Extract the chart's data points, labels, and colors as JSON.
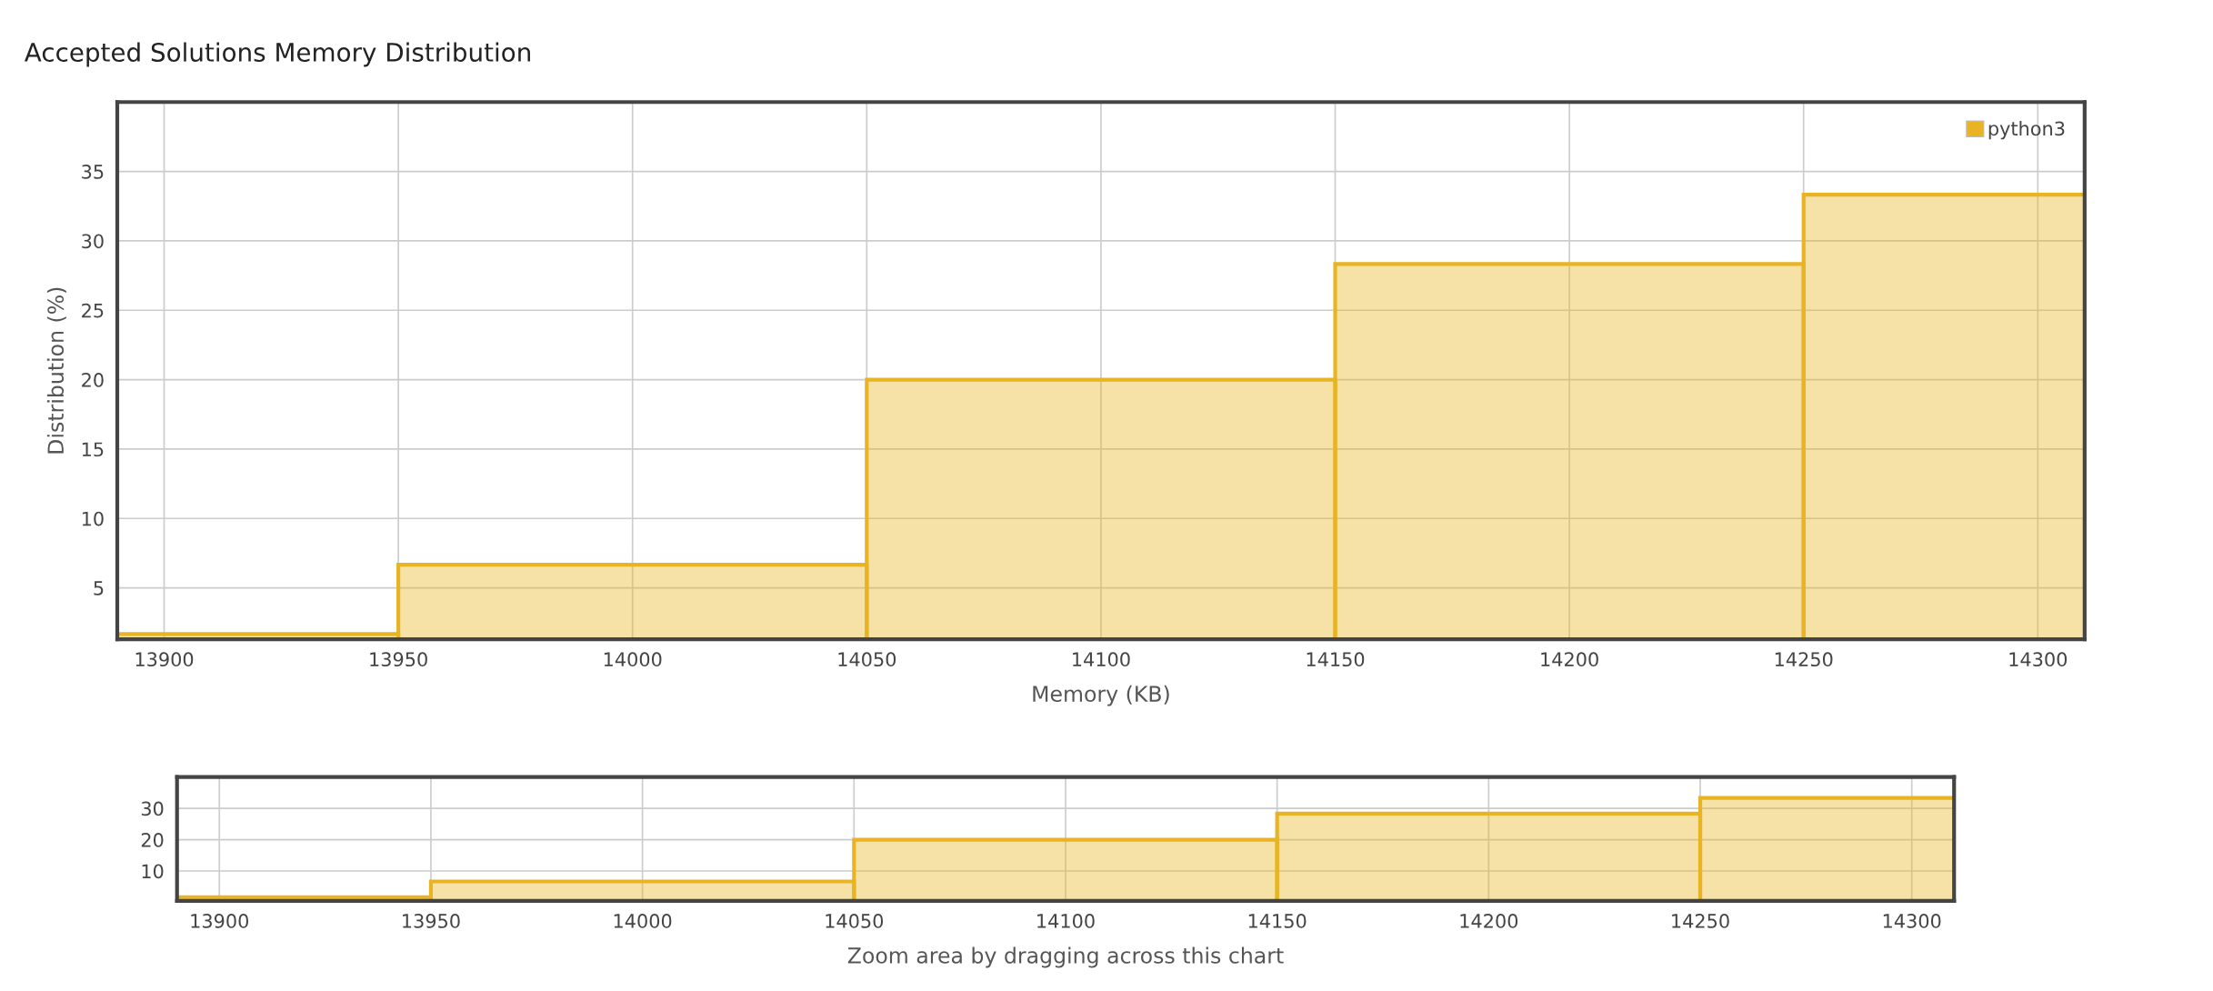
{
  "chart_data": [
    {
      "type": "histogram",
      "title": "Accepted Solutions Memory Distribution",
      "xlabel": "Memory (KB)",
      "ylabel": "Distribution (%)",
      "bins": [
        13850,
        13950,
        14050,
        14150,
        14250,
        14350
      ],
      "series": [
        {
          "name": "python3",
          "color": "#e8b424",
          "values": [
            1.67,
            6.67,
            20,
            28.33,
            33.33
          ]
        }
      ],
      "xlim": [
        13890,
        14310
      ],
      "xticks": [
        13900,
        13950,
        14000,
        14050,
        14100,
        14150,
        14200,
        14250,
        14300
      ],
      "ylim": [
        1.3,
        40
      ],
      "yticks": [
        5,
        10,
        15,
        20,
        25,
        30,
        35
      ],
      "grid": true,
      "legend": "top right"
    },
    {
      "type": "histogram",
      "xlabel": "Zoom area by dragging across this chart",
      "bins": [
        13850,
        13950,
        14050,
        14150,
        14250,
        14350
      ],
      "series": [
        {
          "color": "#e8b424",
          "values": [
            1.67,
            6.67,
            20,
            28.33,
            33.33
          ]
        }
      ],
      "xlim": [
        13890,
        14310
      ],
      "xticks": [
        13900,
        13950,
        14000,
        14050,
        14100,
        14150,
        14200,
        14250,
        14300
      ],
      "ylim": [
        0.5,
        40
      ],
      "yticks": [
        10,
        20,
        30
      ],
      "grid": true,
      "legend": false
    }
  ]
}
